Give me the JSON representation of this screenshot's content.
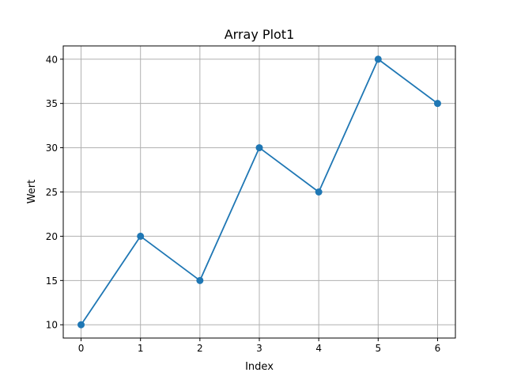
{
  "chart_data": {
    "type": "line",
    "title": "Array Plot1",
    "xlabel": "Index",
    "ylabel": "Wert",
    "x": [
      0,
      1,
      2,
      3,
      4,
      5,
      6
    ],
    "series": [
      {
        "values": [
          10,
          20,
          15,
          30,
          25,
          40,
          35
        ],
        "color": "#1f77b4",
        "marker": "circle"
      }
    ],
    "xlim": [
      -0.3,
      6.3
    ],
    "ylim": [
      8.5,
      41.5
    ],
    "xticks": [
      "0",
      "1",
      "2",
      "3",
      "4",
      "5",
      "6"
    ],
    "yticks": [
      "10",
      "15",
      "20",
      "25",
      "30",
      "35",
      "40"
    ],
    "grid": true,
    "legend": "none"
  }
}
